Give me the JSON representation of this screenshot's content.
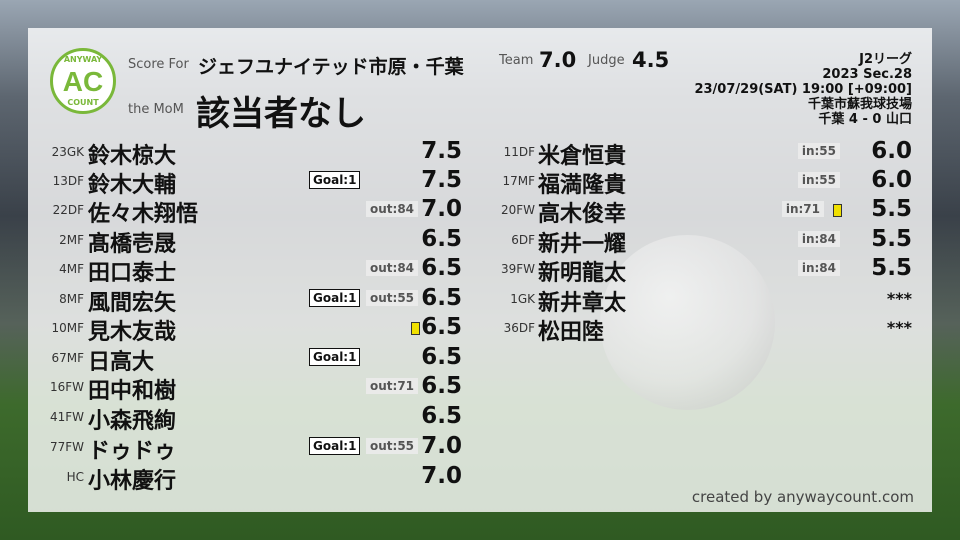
{
  "logo": {
    "top": "ANYWAY",
    "mid": "AC",
    "bottom": "COUNT"
  },
  "header": {
    "score_for_label": "Score For",
    "team_name": "ジェフユナイテッド市原・千葉",
    "mom_label": "the MoM",
    "mom_value": "該当者なし",
    "team_label": "Team",
    "team_score": "7.0",
    "judge_label": "Judge",
    "judge_score": "4.5"
  },
  "match": {
    "league": "J2リーグ",
    "section": "2023 Sec.28",
    "datetime": "23/07/29(SAT) 19:00 [+09:00]",
    "venue": "千葉市蘇我球技場",
    "result": "千葉 4 - 0 山口"
  },
  "starters": [
    {
      "pos": "23GK",
      "name": "鈴木椋大",
      "score": "7.5"
    },
    {
      "pos": "13DF",
      "name": "鈴木大輔",
      "goal": "Goal:1",
      "score": "7.5"
    },
    {
      "pos": "22DF",
      "name": "佐々木翔悟",
      "out": "out:84",
      "score": "7.0"
    },
    {
      "pos": "2MF",
      "name": "髙橋壱晟",
      "score": "6.5"
    },
    {
      "pos": "4MF",
      "name": "田口泰士",
      "out": "out:84",
      "score": "6.5"
    },
    {
      "pos": "8MF",
      "name": "風間宏矢",
      "goal": "Goal:1",
      "out": "out:55",
      "score": "6.5"
    },
    {
      "pos": "10MF",
      "name": "見木友哉",
      "yellow": true,
      "score": "6.5"
    },
    {
      "pos": "67MF",
      "name": "日高大",
      "goal": "Goal:1",
      "score": "6.5"
    },
    {
      "pos": "16FW",
      "name": "田中和樹",
      "out": "out:71",
      "score": "6.5"
    },
    {
      "pos": "41FW",
      "name": "小森飛絢",
      "score": "6.5"
    },
    {
      "pos": "77FW",
      "name": "ドゥドゥ",
      "goal": "Goal:1",
      "out": "out:55",
      "score": "7.0"
    },
    {
      "pos": "HC",
      "name": "小林慶行",
      "score": "7.0"
    }
  ],
  "subs": [
    {
      "pos": "11DF",
      "name": "米倉恒貴",
      "in": "in:55",
      "score": "6.0"
    },
    {
      "pos": "17MF",
      "name": "福満隆貴",
      "in": "in:55",
      "score": "6.0"
    },
    {
      "pos": "20FW",
      "name": "高木俊幸",
      "in": "in:71",
      "yellow": true,
      "score": "5.5"
    },
    {
      "pos": "6DF",
      "name": "新井一耀",
      "in": "in:84",
      "score": "5.5"
    },
    {
      "pos": "39FW",
      "name": "新明龍太",
      "in": "in:84",
      "score": "5.5"
    },
    {
      "pos": "1GK",
      "name": "新井章太",
      "score": "***",
      "unused": true
    },
    {
      "pos": "36DF",
      "name": "松田陸",
      "score": "***"
    }
  ],
  "credit": "created by anywaycount.com",
  "colors": {
    "logo_green": "#7ab83a",
    "yellow_card": "#f0e000"
  }
}
